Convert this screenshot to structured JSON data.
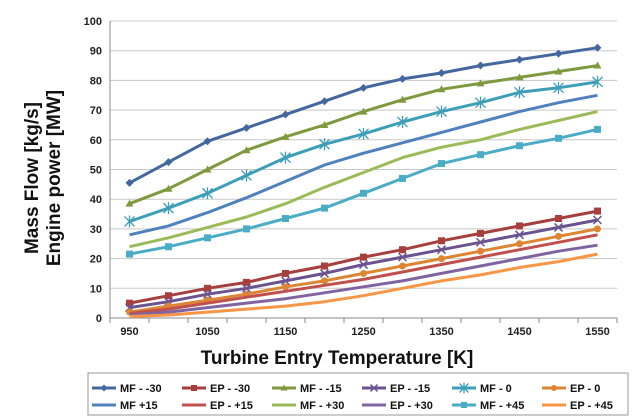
{
  "chart_data": {
    "type": "line",
    "xlabel": "Turbine Entry Temperature [K]",
    "ylabel_lines": [
      "Mass Flow [kg/s]",
      "Engine power [MW]"
    ],
    "xlim": [
      950,
      1550
    ],
    "ylim": [
      0,
      100
    ],
    "x_ticks": [
      950,
      1050,
      1150,
      1250,
      1350,
      1450,
      1550
    ],
    "y_ticks": [
      0,
      10,
      20,
      30,
      40,
      50,
      60,
      70,
      80,
      90,
      100
    ],
    "grid": "horizontal",
    "legend_position": "bottom",
    "x": [
      950,
      1000,
      1050,
      1100,
      1150,
      1200,
      1250,
      1300,
      1350,
      1400,
      1450,
      1500,
      1550
    ],
    "series": [
      {
        "name": "MF - -30",
        "color": "#44679f",
        "marker": "diamond",
        "values": [
          45.5,
          52.5,
          59.5,
          64,
          68.5,
          73,
          77.5,
          80.5,
          82.5,
          85,
          87,
          89,
          91
        ]
      },
      {
        "name": "EP - -30",
        "color": "#a73f3d",
        "marker": "square",
        "values": [
          5,
          7.5,
          10,
          12,
          15,
          17.5,
          20.5,
          23,
          26,
          28.5,
          31,
          33.5,
          36
        ]
      },
      {
        "name": "MF - -15",
        "color": "#7f9a3e",
        "marker": "triangle",
        "values": [
          38.5,
          43.5,
          50,
          56.5,
          61,
          65,
          69.5,
          73.5,
          77,
          79,
          81,
          83,
          85
        ]
      },
      {
        "name": "EP - -15",
        "color": "#6b5390",
        "marker": "x",
        "values": [
          3.5,
          5.5,
          8,
          10,
          12.5,
          15,
          18,
          20.5,
          23,
          25.5,
          28,
          30.5,
          33
        ]
      },
      {
        "name": "MF - 0",
        "color": "#3c9fb7",
        "marker": "asterisk",
        "values": [
          32.5,
          37,
          42,
          48,
          54,
          58.5,
          62,
          66,
          69.5,
          72.5,
          76,
          77.5,
          79.5
        ]
      },
      {
        "name": "EP - 0",
        "color": "#de8534",
        "marker": "circle",
        "values": [
          2,
          4,
          6,
          8,
          10.5,
          12.5,
          15,
          17.5,
          20,
          22.5,
          25,
          27.5,
          30
        ]
      },
      {
        "name": "MF +15",
        "color": "#4f81bd",
        "marker": "none",
        "values": [
          28,
          31,
          35.5,
          40.5,
          46,
          51.5,
          55.5,
          59,
          62.5,
          66,
          69.5,
          72.5,
          75
        ]
      },
      {
        "name": "EP - +15",
        "color": "#c0504d",
        "marker": "none",
        "values": [
          1.5,
          3,
          5,
          7,
          9,
          11,
          13,
          15.5,
          18,
          20.5,
          23,
          25.5,
          28
        ]
      },
      {
        "name": "MF - +30",
        "color": "#9bbb59",
        "marker": "none",
        "values": [
          24,
          27,
          30.5,
          34,
          38.5,
          44,
          49,
          54,
          57.5,
          60,
          63.5,
          66.5,
          69.5
        ]
      },
      {
        "name": "EP - +30",
        "color": "#8064a2",
        "marker": "none",
        "values": [
          1,
          2,
          3.5,
          5,
          6.5,
          8.5,
          10.5,
          12.5,
          15,
          17.5,
          20,
          22.5,
          24.5
        ]
      },
      {
        "name": "MF - +45",
        "color": "#4bacc6",
        "marker": "square",
        "values": [
          21.5,
          24,
          27,
          30,
          33.5,
          37,
          42,
          47,
          52,
          55,
          58,
          60.5,
          63.5
        ]
      },
      {
        "name": "EP - +45",
        "color": "#f79646",
        "marker": "none",
        "values": [
          0.5,
          1,
          2,
          3,
          4,
          5.5,
          7.5,
          10,
          12.5,
          14.5,
          17,
          19,
          21.5
        ]
      }
    ]
  }
}
